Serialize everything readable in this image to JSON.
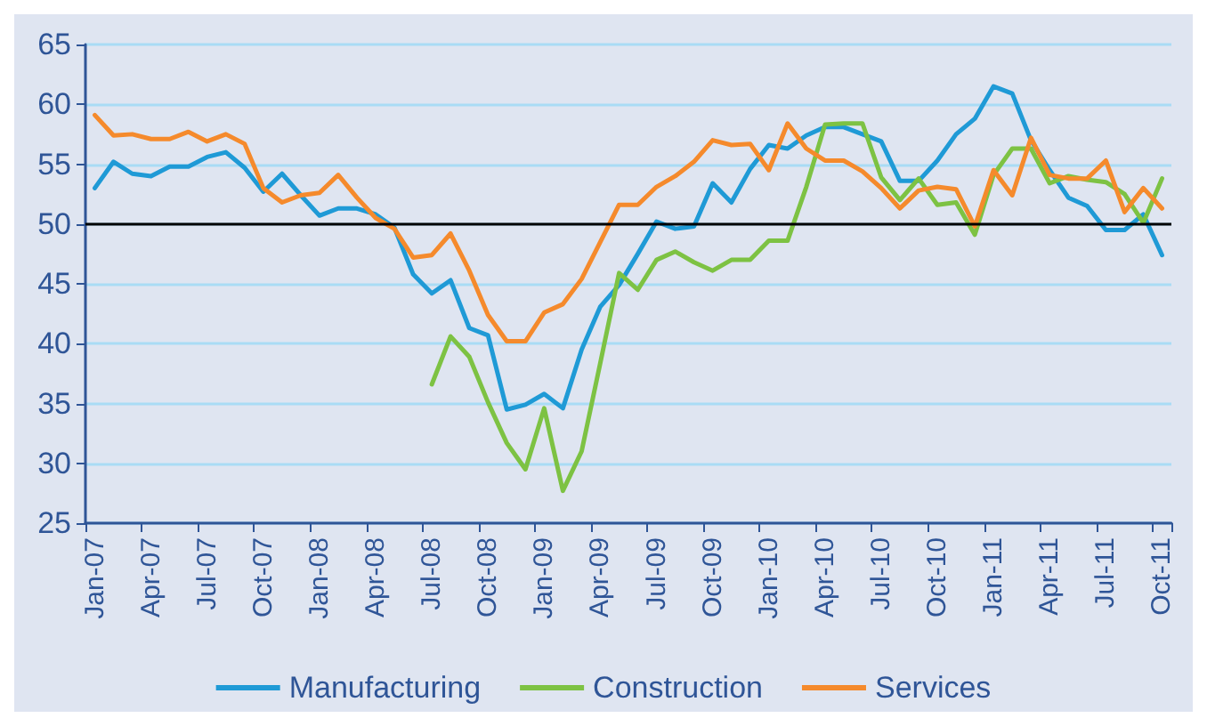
{
  "chart_data": {
    "type": "line",
    "categories": [
      "Jan-07",
      null,
      null,
      "Apr-07",
      null,
      null,
      "Jul-07",
      null,
      null,
      "Oct-07",
      null,
      null,
      "Jan-08",
      null,
      null,
      "Apr-08",
      null,
      null,
      "Jul-08",
      null,
      null,
      "Oct-08",
      null,
      null,
      "Jan-09",
      null,
      null,
      "Apr-09",
      null,
      null,
      "Jul-09",
      null,
      null,
      "Oct-09",
      null,
      null,
      "Jan-10",
      null,
      null,
      "Apr-10",
      null,
      null,
      "Jul-10",
      null,
      null,
      "Oct-10",
      null,
      null,
      "Jan-11",
      null,
      null,
      "Apr-11",
      null,
      null,
      "Jul-11",
      null,
      null,
      "Oct-11"
    ],
    "series": [
      {
        "name": "Manufacturing",
        "color": "#1f9ad6",
        "values": [
          53.0,
          55.2,
          54.2,
          54.0,
          54.8,
          54.8,
          55.6,
          56.0,
          54.7,
          52.7,
          54.2,
          52.4,
          50.7,
          51.3,
          51.3,
          50.8,
          49.7,
          45.8,
          44.2,
          45.3,
          41.3,
          40.7,
          34.5,
          34.9,
          35.8,
          34.6,
          39.5,
          43.1,
          44.9,
          47.5,
          50.2,
          49.6,
          49.8,
          53.4,
          51.8,
          54.6,
          56.6,
          56.3,
          57.4,
          58.1,
          58.1,
          57.5,
          56.9,
          53.6,
          53.6,
          55.3,
          57.5,
          58.8,
          61.5,
          60.9,
          57.0,
          54.5,
          52.2,
          51.5,
          49.5,
          49.5,
          50.8,
          47.4
        ]
      },
      {
        "name": "Construction",
        "color": "#7dc243",
        "values": [
          null,
          null,
          null,
          null,
          null,
          null,
          null,
          null,
          null,
          null,
          null,
          null,
          null,
          null,
          null,
          null,
          null,
          null,
          36.6,
          40.6,
          38.9,
          35.1,
          31.7,
          29.5,
          34.6,
          27.7,
          31.0,
          38.4,
          45.9,
          44.5,
          47.0,
          47.7,
          46.8,
          46.1,
          47.0,
          47.0,
          48.6,
          48.6,
          53.1,
          58.3,
          58.4,
          58.4,
          53.9,
          52.0,
          53.8,
          51.6,
          51.8,
          49.1,
          54.1,
          56.3,
          56.3,
          53.4,
          54.0,
          53.7,
          53.5,
          52.5,
          50.1,
          53.8
        ]
      },
      {
        "name": "Services",
        "color": "#f58a2c",
        "values": [
          59.1,
          57.4,
          57.5,
          57.1,
          57.1,
          57.7,
          56.9,
          57.5,
          56.7,
          53.0,
          51.8,
          52.4,
          52.6,
          54.1,
          52.2,
          50.5,
          49.6,
          47.2,
          47.4,
          49.2,
          46.1,
          42.4,
          40.2,
          40.2,
          42.6,
          43.3,
          45.4,
          48.5,
          51.6,
          51.6,
          53.1,
          54.0,
          55.2,
          57.0,
          56.6,
          56.7,
          54.5,
          58.4,
          56.3,
          55.3,
          55.3,
          54.4,
          53.0,
          51.3,
          52.8,
          53.1,
          52.9,
          49.8,
          54.5,
          52.4,
          57.2,
          54.1,
          53.8,
          53.8,
          55.3,
          51.0,
          53.0,
          51.3
        ]
      }
    ],
    "ylim": [
      25,
      65
    ],
    "yticks": [
      25,
      30,
      35,
      40,
      45,
      50,
      55,
      60,
      65
    ],
    "ref_lines": [
      {
        "axis": "y",
        "value": 50,
        "color": "#000000"
      }
    ],
    "grid": "y",
    "legend": "bottom",
    "marker": "none",
    "line_style": "solid"
  }
}
